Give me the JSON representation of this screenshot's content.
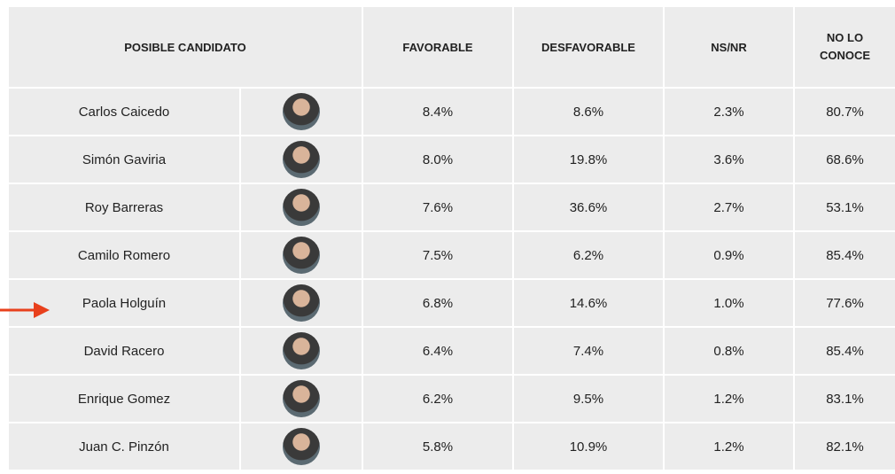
{
  "table": {
    "header": [
      "POSIBLE CANDIDATO",
      "FAVORABLE",
      "DESFAVORABLE",
      "NS/NR",
      "NO LO CONOCE"
    ],
    "rows": [
      [
        "Carlos Caicedo",
        "8.4%",
        "8.6%",
        "2.3%",
        "80.7%"
      ],
      [
        "Simón Gaviria",
        "8.0%",
        "19.8%",
        "3.6%",
        "68.6%"
      ],
      [
        "Roy Barreras",
        "7.6%",
        "36.6%",
        "2.7%",
        "53.1%"
      ],
      [
        "Camilo Romero",
        "7.5%",
        "6.2%",
        "0.9%",
        "85.4%"
      ],
      [
        "Paola Holguín",
        "6.8%",
        "14.6%",
        "1.0%",
        "77.6%"
      ],
      [
        "David Racero",
        "6.4%",
        "7.4%",
        "0.8%",
        "85.4%"
      ],
      [
        "Enrique Gomez",
        "6.2%",
        "9.5%",
        "1.2%",
        "83.1%"
      ],
      [
        "Juan C. Pinzón",
        "5.8%",
        "10.9%",
        "1.2%",
        "82.1%"
      ]
    ]
  }
}
